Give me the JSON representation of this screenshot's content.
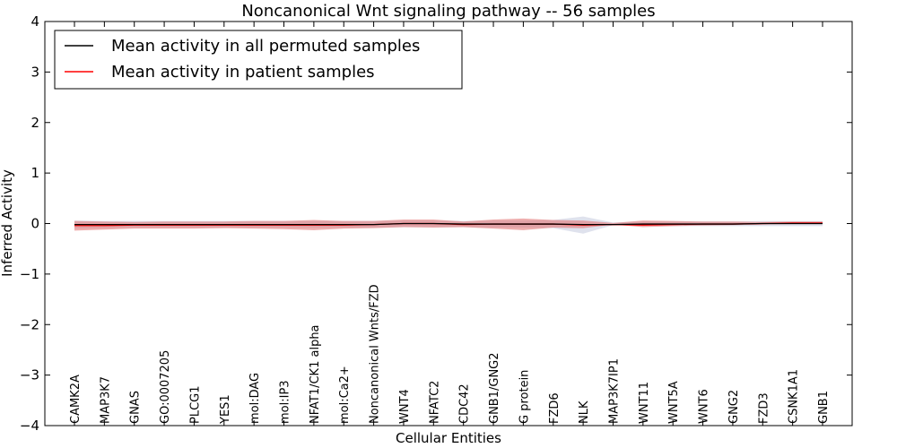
{
  "chart_data": {
    "type": "line",
    "title": "Noncanonical Wnt signaling pathway -- 56 samples",
    "xlabel": "Cellular Entities",
    "ylabel": "Inferred Activity",
    "ylim": [
      -4,
      4
    ],
    "yticks": [
      4,
      3,
      2,
      1,
      0,
      -1,
      -2,
      -3,
      -4
    ],
    "ytick_labels": [
      "4",
      "3",
      "2",
      "1",
      "0",
      "−1",
      "−2",
      "−3",
      "−4"
    ],
    "categories": [
      "CAMK2A",
      "MAP3K7",
      "GNAS",
      "GO:0007205",
      "PLCG1",
      "YES1",
      "mol:DAG",
      "mol:IP3",
      "NFAT1/CK1 alpha",
      "mol:Ca2+",
      "Noncanonical Wnts/FZD",
      "WNT4",
      "NFATC2",
      "CDC42",
      "GNB1/GNG2",
      "G protein",
      "FZD6",
      "NLK",
      "MAP3K7IP1",
      "WNT11",
      "WNT5A",
      "WNT6",
      "GNG2",
      "FZD3",
      "CSNK1A1",
      "GNB1"
    ],
    "legend": {
      "placement": "top-left"
    },
    "series": [
      {
        "name": "Mean activity in all permuted samples",
        "color": "#000000",
        "band_color": "#b8bfd6",
        "values": [
          -0.02,
          -0.02,
          -0.02,
          -0.02,
          -0.02,
          -0.02,
          -0.02,
          -0.02,
          -0.02,
          -0.02,
          -0.02,
          0.0,
          0.0,
          -0.01,
          -0.01,
          -0.01,
          -0.01,
          -0.02,
          -0.02,
          -0.01,
          -0.01,
          -0.01,
          -0.01,
          0.0,
          0.0,
          0.0
        ],
        "lower": [
          -0.1,
          -0.09,
          -0.08,
          -0.08,
          -0.08,
          -0.08,
          -0.08,
          -0.08,
          -0.08,
          -0.08,
          -0.08,
          -0.07,
          -0.07,
          -0.07,
          -0.08,
          -0.08,
          -0.09,
          -0.2,
          -0.03,
          -0.05,
          -0.05,
          -0.05,
          -0.05,
          -0.05,
          -0.05,
          -0.05
        ],
        "upper": [
          0.06,
          0.05,
          0.05,
          0.05,
          0.05,
          0.05,
          0.05,
          0.05,
          0.05,
          0.05,
          0.05,
          0.06,
          0.06,
          0.05,
          0.06,
          0.06,
          0.07,
          0.14,
          0.02,
          0.04,
          0.04,
          0.04,
          0.04,
          0.05,
          0.05,
          0.05
        ]
      },
      {
        "name": "Mean activity in patient samples",
        "color": "#ff0000",
        "band_color": "#e27878",
        "values": [
          -0.04,
          -0.04,
          -0.03,
          -0.03,
          -0.03,
          -0.03,
          -0.03,
          -0.03,
          -0.03,
          -0.03,
          -0.02,
          0.0,
          0.0,
          -0.02,
          -0.01,
          -0.01,
          -0.01,
          -0.03,
          -0.02,
          -0.03,
          -0.02,
          -0.01,
          -0.01,
          0.0,
          0.01,
          0.01
        ],
        "lower": [
          -0.14,
          -0.12,
          -0.1,
          -0.1,
          -0.1,
          -0.09,
          -0.1,
          -0.11,
          -0.13,
          -0.1,
          -0.09,
          -0.07,
          -0.08,
          -0.07,
          -0.1,
          -0.13,
          -0.08,
          -0.09,
          -0.02,
          -0.07,
          -0.05,
          -0.04,
          -0.03,
          -0.02,
          -0.01,
          -0.01
        ],
        "upper": [
          0.05,
          0.04,
          0.03,
          0.04,
          0.04,
          0.04,
          0.05,
          0.05,
          0.07,
          0.05,
          0.05,
          0.08,
          0.08,
          0.04,
          0.08,
          0.1,
          0.07,
          0.06,
          0.01,
          0.06,
          0.05,
          0.04,
          0.04,
          0.03,
          0.04,
          0.04
        ]
      }
    ]
  }
}
